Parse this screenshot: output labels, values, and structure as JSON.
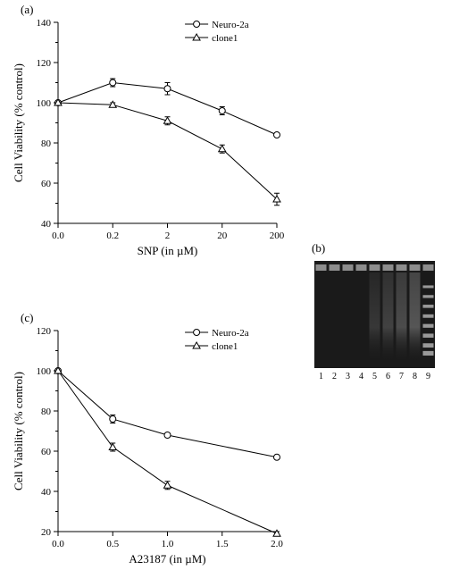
{
  "chart_a": {
    "label": "(a)",
    "type": "line",
    "xlabel": "SNP (in µM)",
    "ylabel": "Cell Viability (% control)",
    "xlim": [
      0,
      4
    ],
    "ylim": [
      40,
      140
    ],
    "xtick_pos": [
      0,
      1,
      2,
      3,
      4
    ],
    "xtick_lab": [
      "0.0",
      "0.2",
      "2",
      "20",
      "200"
    ],
    "ytick_step": 20,
    "legend": [
      "Neuro-2a",
      "clone1"
    ],
    "markers": [
      "circle",
      "triangle"
    ],
    "series": [
      {
        "name": "Neuro-2a",
        "x": [
          0,
          1,
          2,
          3,
          4
        ],
        "y": [
          100,
          110,
          107,
          96,
          84
        ],
        "err": [
          0,
          2,
          3,
          2,
          0
        ]
      },
      {
        "name": "clone1",
        "x": [
          0,
          1,
          2,
          3,
          4
        ],
        "y": [
          100,
          99,
          91,
          77,
          52
        ],
        "err": [
          0,
          1,
          2,
          2,
          3
        ]
      }
    ],
    "line_color": "#000000",
    "bg": "#ffffff",
    "font_size_label": 13,
    "font_size_tick": 11
  },
  "chart_c": {
    "label": "(c)",
    "type": "line",
    "xlabel": "A23187 (in µM)",
    "ylabel": "Cell Viability (% control)",
    "xlim": [
      0,
      2
    ],
    "ylim": [
      20,
      120
    ],
    "xtick_pos": [
      0,
      0.5,
      1,
      1.5,
      2
    ],
    "xtick_lab": [
      "0.0",
      "0.5",
      "1.0",
      "1.5",
      "2.0"
    ],
    "ytick_step": 20,
    "legend": [
      "Neuro-2a",
      "clone1"
    ],
    "markers": [
      "circle",
      "triangle"
    ],
    "series": [
      {
        "name": "Neuro-2a",
        "x": [
          0,
          0.5,
          1,
          2
        ],
        "y": [
          100,
          76,
          68,
          57
        ],
        "err": [
          0,
          2,
          1,
          1
        ]
      },
      {
        "name": "clone1",
        "x": [
          0,
          0.5,
          1,
          2
        ],
        "y": [
          100,
          62,
          43,
          19
        ],
        "err": [
          0,
          2,
          2,
          1
        ]
      }
    ],
    "line_color": "#000000",
    "bg": "#ffffff",
    "font_size_label": 13,
    "font_size_tick": 11
  },
  "gel_b": {
    "label": "(b)",
    "lanes": [
      "1",
      "2",
      "3",
      "4",
      "5",
      "6",
      "7",
      "8",
      "9"
    ],
    "bg": "#1a1a1a",
    "well_color": "#606060",
    "lane_colors": {
      "well_top": "#9a9a9a",
      "smear": "#6e6e6e",
      "band": "#b0b0b0"
    },
    "font_size_lane": 10
  }
}
